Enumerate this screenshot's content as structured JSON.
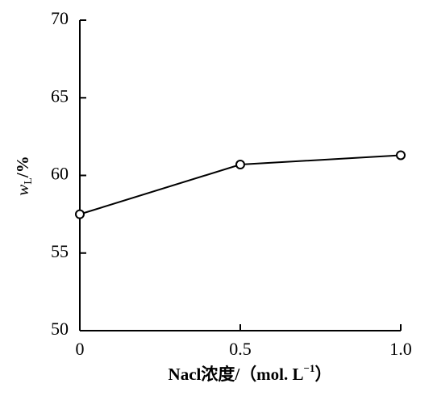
{
  "chart_data": {
    "type": "line",
    "x": [
      0,
      0.5,
      1.0
    ],
    "series": [
      {
        "values": [
          57.5,
          60.7,
          61.3
        ],
        "color": "#000000"
      }
    ],
    "xlim": [
      0,
      1.0
    ],
    "xticks": [
      0,
      0.5,
      {
        "value": 1.0,
        "label": "1.0"
      }
    ],
    "ylim": [
      50,
      70
    ],
    "yticks": [
      50,
      55,
      60,
      65,
      70
    ],
    "ylabel": {
      "symbol": "w",
      "subscript": "L",
      "unit": "/%"
    },
    "xlabel": {
      "text": "Nacl浓度/（mol. L",
      "superscript": "−1",
      "close": "）"
    },
    "grid": false,
    "marker": "circle"
  }
}
